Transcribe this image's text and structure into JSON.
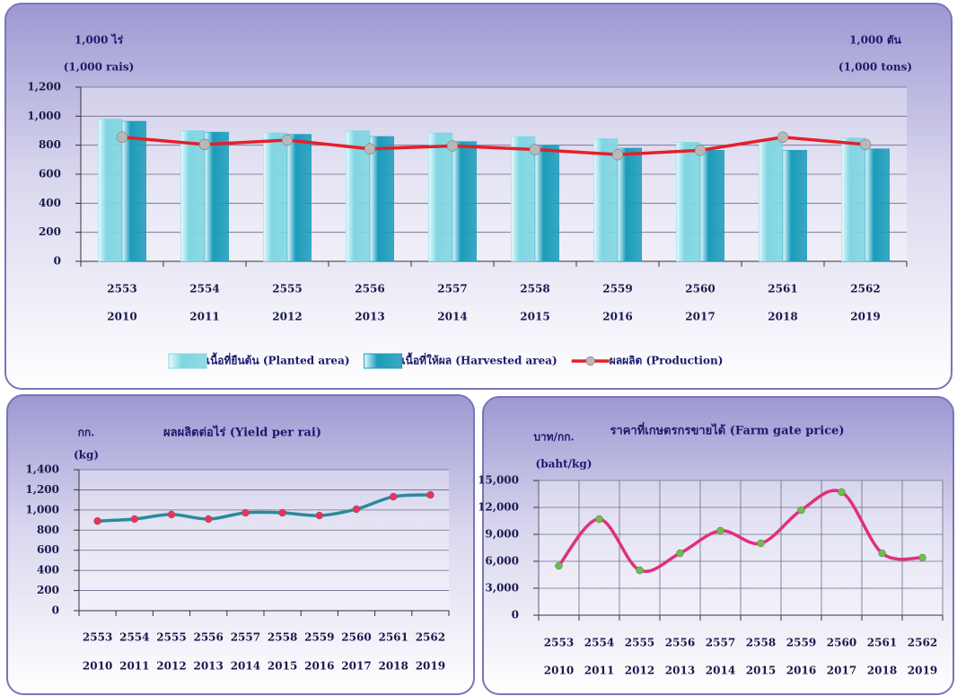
{
  "chart_data": [
    {
      "type": "bar",
      "y_label": "1,000 ไร่",
      "y_sublabel": "(1,000 rais)",
      "y2_label": "1,000 ตัน",
      "y2_sublabel": "(1,000 tons)",
      "categories": [
        "2553",
        "2554",
        "2555",
        "2556",
        "2557",
        "2558",
        "2559",
        "2560",
        "2561",
        "2562"
      ],
      "categories_ce": [
        "2010",
        "2011",
        "2012",
        "2013",
        "2014",
        "2015",
        "2016",
        "2017",
        "2018",
        "2019"
      ],
      "series": [
        {
          "name": "เนื้อที่ยืนต้น (Planted area)",
          "type": "bar",
          "color": "#7fd6e2",
          "values": [
            980,
            900,
            885,
            900,
            885,
            860,
            845,
            820,
            840,
            850
          ]
        },
        {
          "name": "เนื้อที่ให้ผล (Harvested area)",
          "type": "bar",
          "color": "#1b9cba",
          "values": [
            965,
            890,
            875,
            860,
            825,
            800,
            780,
            765,
            765,
            775
          ]
        },
        {
          "name": "ผลผลิต (Production)",
          "type": "line",
          "color": "#e3202a",
          "marker_color": "#b8b8b8",
          "values": [
            855,
            805,
            835,
            775,
            795,
            770,
            735,
            765,
            855,
            805
          ]
        }
      ],
      "ylim": [
        0,
        1200
      ],
      "yticks": [
        0,
        200,
        400,
        600,
        800,
        {
          "value": 1000,
          "label": "1,000"
        },
        {
          "value": 1200,
          "label": "1,200"
        }
      ],
      "grid": true,
      "legend": "bottom"
    },
    {
      "type": "line",
      "title": "ผลผลิตต่อไร่ (Yield per rai)",
      "y_label": "กก.",
      "y_sublabel": "(kg)",
      "categories": [
        "2553",
        "2554",
        "2555",
        "2556",
        "2557",
        "2558",
        "2559",
        "2560",
        "2561",
        "2562"
      ],
      "categories_ce": [
        "2010",
        "2011",
        "2012",
        "2013",
        "2014",
        "2015",
        "2016",
        "2017",
        "2018",
        "2019"
      ],
      "series": [
        {
          "color": "#2a8a9c",
          "marker_color": "#f0305a",
          "values": [
            890,
            910,
            955,
            910,
            972,
            972,
            945,
            1008,
            1132,
            1150
          ]
        }
      ],
      "ylim": [
        0,
        1400
      ],
      "yticks": [
        0,
        200,
        400,
        600,
        800,
        {
          "value": 1000,
          "label": "1,000"
        },
        {
          "value": 1200,
          "label": "1,200"
        },
        {
          "value": 1400,
          "label": "1,400"
        }
      ],
      "grid": true,
      "smooth": true
    },
    {
      "type": "line",
      "title": "ราคาที่เกษตรกรขายได้ (Farm gate price)",
      "y_label": "บาท/กก.",
      "y_sublabel": "(baht/kg)",
      "categories": [
        "2553",
        "2554",
        "2555",
        "2556",
        "2557",
        "2558",
        "2559",
        "2560",
        "2561",
        "2562"
      ],
      "categories_ce": [
        "2010",
        "2011",
        "2012",
        "2013",
        "2014",
        "2015",
        "2016",
        "2017",
        "2018",
        "2019"
      ],
      "series": [
        {
          "color": "#e0307c",
          "marker_color": "#6cc04a",
          "values": [
            5500,
            10700,
            5000,
            6900,
            9400,
            8000,
            11700,
            13700,
            6900,
            6400
          ]
        }
      ],
      "ylim": [
        0,
        15000
      ],
      "yticks": [
        0,
        {
          "value": 3000,
          "label": "3,000"
        },
        {
          "value": 6000,
          "label": "6,000"
        },
        {
          "value": 9000,
          "label": "9,000"
        },
        {
          "value": 12000,
          "label": "12,000"
        },
        {
          "value": 15000,
          "label": "15,000"
        }
      ],
      "grid": true,
      "xgrid": true,
      "smooth": true
    }
  ]
}
